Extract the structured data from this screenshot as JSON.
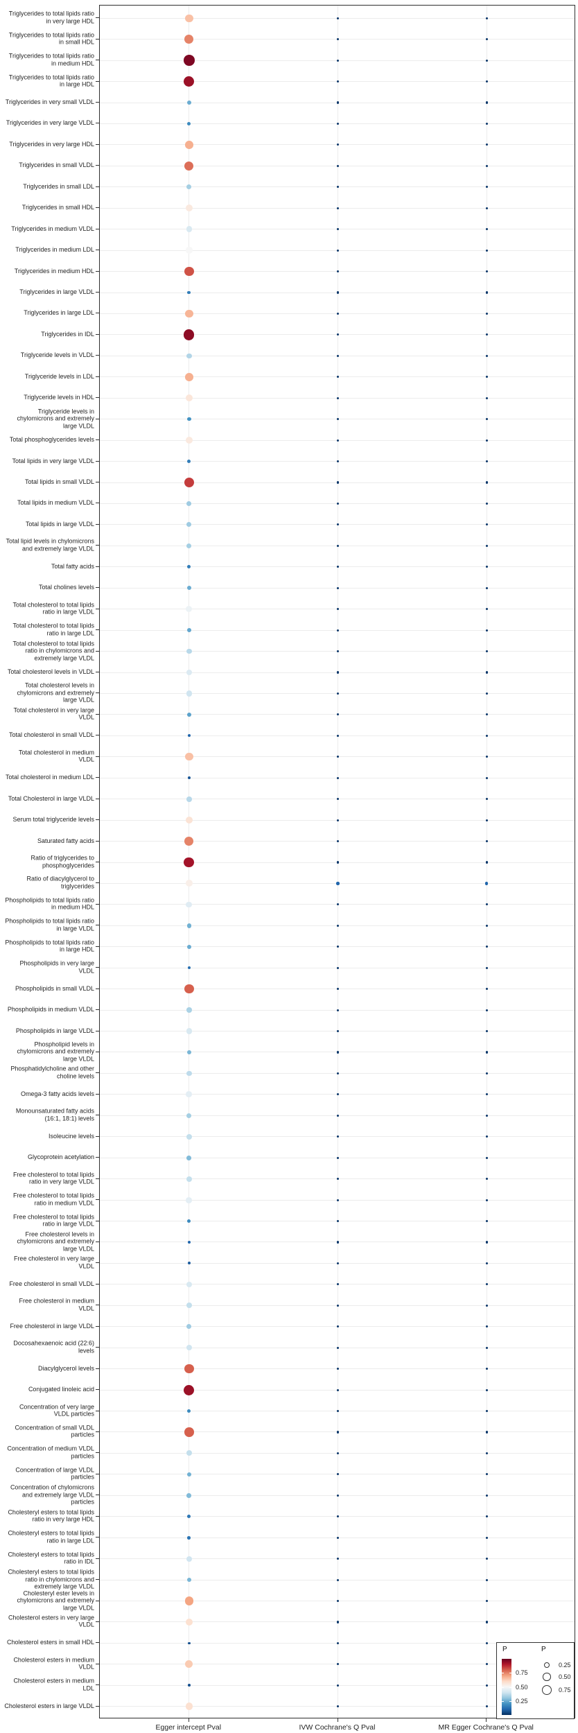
{
  "chart_data": {
    "type": "scatter",
    "subtype": "balloon-dot-matrix",
    "title": "",
    "xlabel": "",
    "ylabel": "",
    "value_name": "P",
    "grid": true,
    "legend_position": "bottom-right-inset",
    "x_categories": [
      "Egger intercept Pval",
      "IVW Cochrane's Q Pval",
      "MR Egger Cochrane's Q Pval"
    ],
    "palette": {
      "low": "#053061",
      "mid": "#f7f7f7",
      "high": "#67001f",
      "stops": [
        "#053061",
        "#2166ac",
        "#4393c3",
        "#92c5de",
        "#d1e5f0",
        "#f7f7f7",
        "#fddbc7",
        "#f4a582",
        "#d6604d",
        "#b2182b",
        "#67001f"
      ]
    },
    "legend": {
      "color": {
        "title": "P",
        "tick_labels": [
          "0.75",
          "0.50",
          "0.25"
        ],
        "tick_values": [
          0.75,
          0.5,
          0.25
        ]
      },
      "size": {
        "title": "P",
        "tick_labels": [
          "0.25",
          "0.50",
          "0.75"
        ],
        "tick_values": [
          0.25,
          0.5,
          0.75
        ]
      }
    },
    "rows": [
      {
        "label": "Triglycerides to total lipids ratio in very large HDL",
        "values": [
          0.65,
          0.01,
          0.01
        ]
      },
      {
        "label": "Triglycerides to total lipids ratio in small HDL",
        "values": [
          0.75,
          0.01,
          0.01
        ]
      },
      {
        "label": "Triglycerides to total lipids ratio in medium HDL",
        "values": [
          0.97,
          0.01,
          0.01
        ]
      },
      {
        "label": "Triglycerides to total lipids ratio in large HDL",
        "values": [
          0.93,
          0.01,
          0.01
        ]
      },
      {
        "label": "Triglycerides in very small VLDL",
        "values": [
          0.25,
          0.01,
          0.01
        ]
      },
      {
        "label": "Triglycerides in very large VLDL",
        "values": [
          0.18,
          0.01,
          0.01
        ]
      },
      {
        "label": "Triglycerides in very large HDL",
        "values": [
          0.68,
          0.01,
          0.01
        ]
      },
      {
        "label": "Triglycerides in small VLDL",
        "values": [
          0.78,
          0.01,
          0.01
        ]
      },
      {
        "label": "Triglycerides in small LDL",
        "values": [
          0.33,
          0.01,
          0.01
        ]
      },
      {
        "label": "Triglycerides in small HDL",
        "values": [
          0.55,
          0.01,
          0.01
        ]
      },
      {
        "label": "Triglycerides in medium VLDL",
        "values": [
          0.42,
          0.01,
          0.01
        ]
      },
      {
        "label": "Triglycerides in medium LDL",
        "values": [
          0.5,
          0.01,
          0.01
        ]
      },
      {
        "label": "Triglycerides in medium HDL",
        "values": [
          0.82,
          0.01,
          0.01
        ]
      },
      {
        "label": "Triglycerides in large VLDL",
        "values": [
          0.15,
          0.01,
          0.01
        ]
      },
      {
        "label": "Triglycerides in large LDL",
        "values": [
          0.67,
          0.01,
          0.01
        ]
      },
      {
        "label": "Triglycerides in IDL",
        "values": [
          0.95,
          0.01,
          0.01
        ]
      },
      {
        "label": "Triglyceride levels in VLDL",
        "values": [
          0.35,
          0.01,
          0.01
        ]
      },
      {
        "label": "Triglyceride levels in LDL",
        "values": [
          0.68,
          0.01,
          0.01
        ]
      },
      {
        "label": "Triglyceride levels in HDL",
        "values": [
          0.56,
          0.01,
          0.01
        ]
      },
      {
        "label": "Triglyceride levels in chylomicrons and extremely large VLDL",
        "values": [
          0.2,
          0.01,
          0.01
        ]
      },
      {
        "label": "Total phosphoglycerides levels",
        "values": [
          0.55,
          0.01,
          0.01
        ]
      },
      {
        "label": "Total lipids in very large VLDL",
        "values": [
          0.15,
          0.01,
          0.01
        ]
      },
      {
        "label": "Total lipids in small VLDL",
        "values": [
          0.85,
          0.01,
          0.01
        ]
      },
      {
        "label": "Total lipids in medium VLDL",
        "values": [
          0.32,
          0.01,
          0.01
        ]
      },
      {
        "label": "Total lipids in large VLDL",
        "values": [
          0.32,
          0.01,
          0.01
        ]
      },
      {
        "label": "Total lipid levels in chylomicrons and extremely large VLDL",
        "values": [
          0.33,
          0.01,
          0.01
        ]
      },
      {
        "label": "Total fatty acids",
        "values": [
          0.15,
          0.01,
          0.01
        ]
      },
      {
        "label": "Total cholines levels",
        "values": [
          0.25,
          0.01,
          0.01
        ]
      },
      {
        "label": "Total cholesterol to total lipids ratio in large VLDL",
        "values": [
          0.47,
          0.01,
          0.01
        ]
      },
      {
        "label": "Total cholesterol to total lipids ratio in large LDL",
        "values": [
          0.24,
          0.01,
          0.01
        ]
      },
      {
        "label": "Total cholesterol to total lipids ratio in chylomicrons and extremely large VLDL",
        "values": [
          0.36,
          0.01,
          0.01
        ]
      },
      {
        "label": "Total cholesterol levels in VLDL",
        "values": [
          0.43,
          0.01,
          0.01
        ]
      },
      {
        "label": "Total cholesterol levels in chylomicrons and extremely large VLDL",
        "values": [
          0.4,
          0.01,
          0.01
        ]
      },
      {
        "label": "Total cholesterol in very large VLDL",
        "values": [
          0.23,
          0.01,
          0.01
        ]
      },
      {
        "label": "Total cholesterol in small VLDL",
        "values": [
          0.1,
          0.01,
          0.01
        ]
      },
      {
        "label": "Total cholesterol in medium VLDL",
        "values": [
          0.65,
          0.01,
          0.01
        ]
      },
      {
        "label": "Total cholesterol in medium LDL",
        "values": [
          0.07,
          0.01,
          0.01
        ]
      },
      {
        "label": "Total Cholesterol in large VLDL",
        "values": [
          0.36,
          0.01,
          0.01
        ]
      },
      {
        "label": "Serum total triglyceride levels",
        "values": [
          0.57,
          0.01,
          0.01
        ]
      },
      {
        "label": "Saturated fatty acids",
        "values": [
          0.75,
          0.01,
          0.01
        ]
      },
      {
        "label": "Ratio of triglycerides to phosphoglycerides",
        "values": [
          0.92,
          0.01,
          0.01
        ]
      },
      {
        "label": "Ratio of diacylglycerol to triglycerides",
        "values": [
          0.53,
          0.1,
          0.1
        ]
      },
      {
        "label": "Phospholipids to total lipids ratio in medium HDL",
        "values": [
          0.44,
          0.01,
          0.01
        ]
      },
      {
        "label": "Phospholipids to total lipids ratio in large VLDL",
        "values": [
          0.26,
          0.01,
          0.01
        ]
      },
      {
        "label": "Phospholipids to total lipids ratio in large HDL",
        "values": [
          0.25,
          0.01,
          0.01
        ]
      },
      {
        "label": "Phospholipids in very large VLDL",
        "values": [
          0.12,
          0.01,
          0.01
        ]
      },
      {
        "label": "Phospholipids in small VLDL",
        "values": [
          0.8,
          0.01,
          0.01
        ]
      },
      {
        "label": "Phospholipids in medium VLDL",
        "values": [
          0.34,
          0.01,
          0.01
        ]
      },
      {
        "label": "Phospholipids in large VLDL",
        "values": [
          0.42,
          0.01,
          0.01
        ]
      },
      {
        "label": "Phospholipid levels in chylomicrons and extremely large VLDL",
        "values": [
          0.27,
          0.01,
          0.01
        ]
      },
      {
        "label": "Phosphatidylcholine and other choline levels",
        "values": [
          0.37,
          0.01,
          0.01
        ]
      },
      {
        "label": "Omega-3 fatty acids levels",
        "values": [
          0.45,
          0.01,
          0.01
        ]
      },
      {
        "label": "Monounsaturated fatty acids (16:1, 18:1) levels",
        "values": [
          0.33,
          0.01,
          0.01
        ]
      },
      {
        "label": "Isoleucine levels",
        "values": [
          0.38,
          0.01,
          0.01
        ]
      },
      {
        "label": "Glycoprotein acetylation",
        "values": [
          0.28,
          0.01,
          0.01
        ]
      },
      {
        "label": "Free cholesterol to total lipids ratio in very large VLDL",
        "values": [
          0.38,
          0.01,
          0.01
        ]
      },
      {
        "label": "Free cholesterol to total lipids ratio in medium VLDL",
        "values": [
          0.45,
          0.01,
          0.01
        ]
      },
      {
        "label": "Free cholesterol to total lipids ratio in large VLDL",
        "values": [
          0.18,
          0.01,
          0.01
        ]
      },
      {
        "label": "Free cholesterol levels in chylomicrons and extremely large VLDL",
        "values": [
          0.1,
          0.01,
          0.01
        ]
      },
      {
        "label": "Free cholesterol in very large VLDL",
        "values": [
          0.08,
          0.01,
          0.01
        ]
      },
      {
        "label": "Free cholesterol in small VLDL",
        "values": [
          0.42,
          0.01,
          0.01
        ]
      },
      {
        "label": "Free cholesterol in medium VLDL",
        "values": [
          0.38,
          0.01,
          0.01
        ]
      },
      {
        "label": "Free cholesterol in large VLDL",
        "values": [
          0.32,
          0.01,
          0.01
        ]
      },
      {
        "label": "Docosahexaenoic acid (22:6) levels",
        "values": [
          0.4,
          0.01,
          0.01
        ]
      },
      {
        "label": "Diacylglycerol levels",
        "values": [
          0.8,
          0.01,
          0.01
        ]
      },
      {
        "label": "Conjugated linoleic acid",
        "values": [
          0.93,
          0.01,
          0.01
        ]
      },
      {
        "label": "Concentration of very large VLDL particles",
        "values": [
          0.18,
          0.01,
          0.01
        ]
      },
      {
        "label": "Concentration of small VLDL particles",
        "values": [
          0.8,
          0.01,
          0.01
        ]
      },
      {
        "label": "Concentration of medium VLDL particles",
        "values": [
          0.38,
          0.01,
          0.01
        ]
      },
      {
        "label": "Concentration of large VLDL particles",
        "values": [
          0.26,
          0.01,
          0.01
        ]
      },
      {
        "label": "Concentration of chylomicrons and extremely large VLDL particles",
        "values": [
          0.28,
          0.01,
          0.01
        ]
      },
      {
        "label": "Cholesteryl esters to total lipids ratio in very large HDL",
        "values": [
          0.14,
          0.01,
          0.01
        ]
      },
      {
        "label": "Cholesteryl esters to total lipids ratio in large LDL",
        "values": [
          0.13,
          0.01,
          0.01
        ]
      },
      {
        "label": "Cholesteryl esters to total lipids ratio in IDL",
        "values": [
          0.4,
          0.01,
          0.01
        ]
      },
      {
        "label": "Cholesteryl esters to total lipids ratio in chylomicrons and extremely large VLDL",
        "values": [
          0.27,
          0.01,
          0.01
        ]
      },
      {
        "label": "Cholesteryl ester levels in chylomicrons and extremely large VLDL",
        "values": [
          0.7,
          0.01,
          0.01
        ]
      },
      {
        "label": "Cholesterol esters in very large VLDL",
        "values": [
          0.58,
          0.01,
          0.01
        ]
      },
      {
        "label": "Cholesterol esters in small HDL",
        "values": [
          0.06,
          0.01,
          0.01
        ]
      },
      {
        "label": "Cholesterol esters in medium VLDL",
        "values": [
          0.63,
          0.01,
          0.01
        ]
      },
      {
        "label": "Cholesterol esters in medium LDL",
        "values": [
          0.06,
          0.01,
          0.01
        ]
      },
      {
        "label": "Cholesterol esters in large VLDL",
        "values": [
          0.58,
          0.01,
          0.01
        ]
      }
    ]
  }
}
